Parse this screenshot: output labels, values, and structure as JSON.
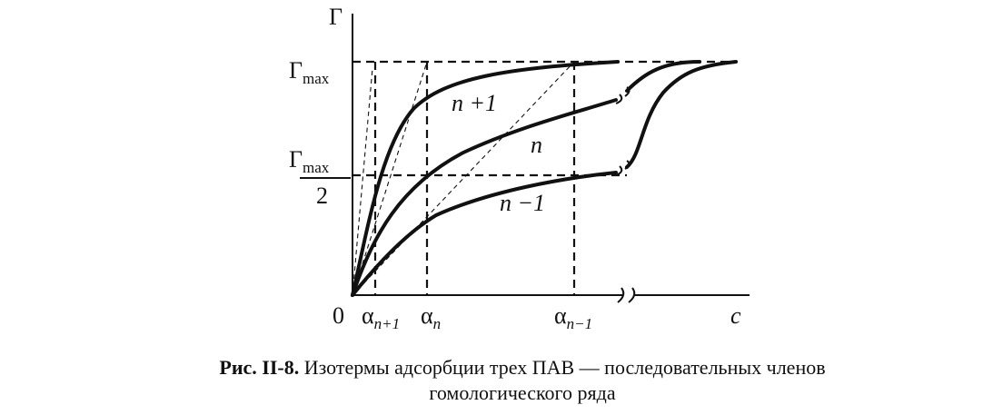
{
  "axis_labels": {
    "y": "Γ",
    "x": "c",
    "origin": "0"
  },
  "levels": {
    "max": {
      "base": "Γ",
      "sub": "max"
    },
    "half": {
      "base": "Γ",
      "sub": "max",
      "denominator": "2"
    }
  },
  "alphas": [
    {
      "base": "α",
      "sub": "n+1"
    },
    {
      "base": "α",
      "sub": "n"
    },
    {
      "base": "α",
      "sub": "n−1"
    }
  ],
  "curves": [
    "n +1",
    "n",
    "n −1"
  ],
  "caption": {
    "label": "Рис. II-8.",
    "lines": [
      "Изотермы адсорбции трех ПАВ — последовательных членов",
      "гомологического ряда"
    ]
  }
}
